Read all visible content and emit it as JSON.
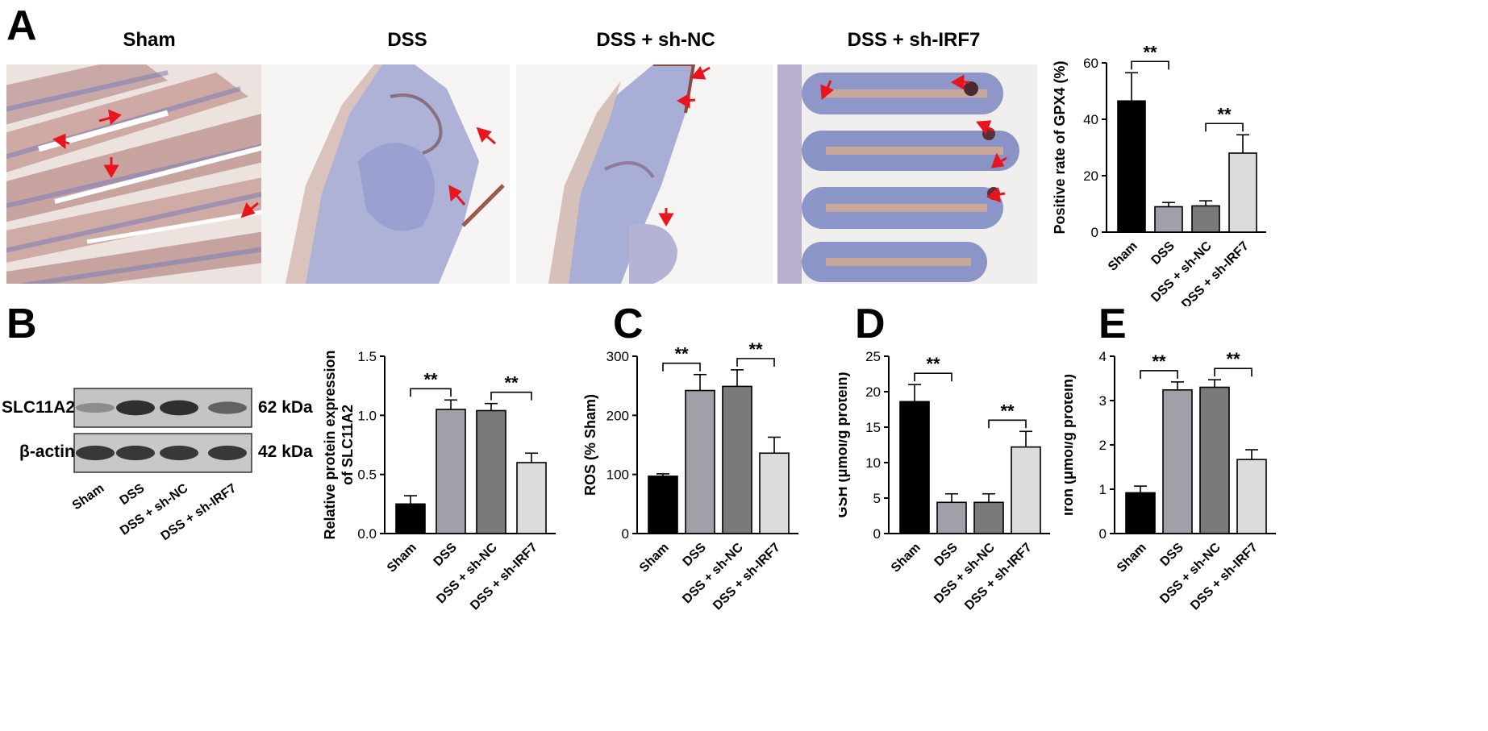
{
  "panels": {
    "A": "A",
    "B": "B",
    "C": "C",
    "D": "D",
    "E": "E"
  },
  "micrograph_titles": [
    "Sham",
    "DSS",
    "DSS + sh-NC",
    "DSS + sh-IRF7"
  ],
  "western_blot": {
    "rows": [
      {
        "protein": "SLC11A2",
        "size": "62 kDa",
        "band_intensity": [
          0.35,
          0.9,
          0.9,
          0.6
        ]
      },
      {
        "protein": "β-actin",
        "size": "42 kDa",
        "band_intensity": [
          0.85,
          0.85,
          0.85,
          0.85
        ]
      }
    ],
    "lanes": [
      "Sham",
      "DSS",
      "DSS + sh-NC",
      "DSS + sh-IRF7"
    ]
  },
  "colors": {
    "sham": "#000000",
    "dss": "#a0a0a8",
    "sh_nc": "#7a7a7a",
    "sh_irf7": "#dcdcdc",
    "arrow": "#e8141e"
  },
  "chart_data": [
    {
      "id": "gpx4",
      "type": "bar",
      "categories": [
        "Sham",
        "DSS",
        "DSS + sh-NC",
        "DSS + sh-IRF7"
      ],
      "values": [
        46.5,
        9.0,
        9.3,
        28.0
      ],
      "errors": [
        10.0,
        1.5,
        1.8,
        6.5
      ],
      "ylabel": "Positive rate of GPX4 (%)",
      "ylim": [
        0,
        60
      ],
      "yticks": [
        "0",
        "20",
        "40",
        "60"
      ],
      "significance": [
        {
          "from": 0,
          "to": 1,
          "label": "**"
        },
        {
          "from": 2,
          "to": 3,
          "label": "**"
        }
      ]
    },
    {
      "id": "slc11a2",
      "type": "bar",
      "categories": [
        "Sham",
        "DSS",
        "DSS + sh-NC",
        "DSS + sh-IRF7"
      ],
      "values": [
        0.25,
        1.05,
        1.04,
        0.6
      ],
      "errors": [
        0.07,
        0.08,
        0.06,
        0.08
      ],
      "ylabel": "Relative protein expression of SLC11A2",
      "ylim": [
        0,
        1.5
      ],
      "yticks": [
        "0.0",
        "0.5",
        "1.0",
        "1.5"
      ],
      "significance": [
        {
          "from": 0,
          "to": 1,
          "label": "**"
        },
        {
          "from": 2,
          "to": 3,
          "label": "**"
        }
      ]
    },
    {
      "id": "ros",
      "type": "bar",
      "categories": [
        "Sham",
        "DSS",
        "DSS + sh-NC",
        "DSS + sh-IRF7"
      ],
      "values": [
        97,
        242,
        249,
        136
      ],
      "errors": [
        4,
        27,
        28,
        27
      ],
      "ylabel": "ROS (% Sham)",
      "ylim": [
        0,
        300
      ],
      "yticks": [
        "0",
        "100",
        "200",
        "300"
      ],
      "significance": [
        {
          "from": 0,
          "to": 1,
          "label": "**"
        },
        {
          "from": 2,
          "to": 3,
          "label": "**"
        }
      ]
    },
    {
      "id": "gsh",
      "type": "bar",
      "categories": [
        "Sham",
        "DSS",
        "DSS + sh-NC",
        "DSS + sh-IRF7"
      ],
      "values": [
        18.6,
        4.4,
        4.4,
        12.2
      ],
      "errors": [
        2.4,
        1.2,
        1.2,
        2.2
      ],
      "ylabel": "GSH (μmol/g protein)",
      "ylim": [
        0,
        25
      ],
      "yticks": [
        "0",
        "5",
        "10",
        "15",
        "20",
        "25"
      ],
      "significance": [
        {
          "from": 0,
          "to": 1,
          "label": "**"
        },
        {
          "from": 2,
          "to": 3,
          "label": "**"
        }
      ]
    },
    {
      "id": "iron",
      "type": "bar",
      "categories": [
        "Sham",
        "DSS",
        "DSS + sh-NC",
        "DSS + sh-IRF7"
      ],
      "values": [
        0.92,
        3.24,
        3.3,
        1.67
      ],
      "errors": [
        0.15,
        0.18,
        0.17,
        0.22
      ],
      "ylabel": "Iron (μmol/g protein)",
      "ylim": [
        0,
        4
      ],
      "yticks": [
        "0",
        "1",
        "2",
        "3",
        "4"
      ],
      "significance": [
        {
          "from": 0,
          "to": 1,
          "label": "**"
        },
        {
          "from": 2,
          "to": 3,
          "label": "**"
        }
      ]
    }
  ]
}
